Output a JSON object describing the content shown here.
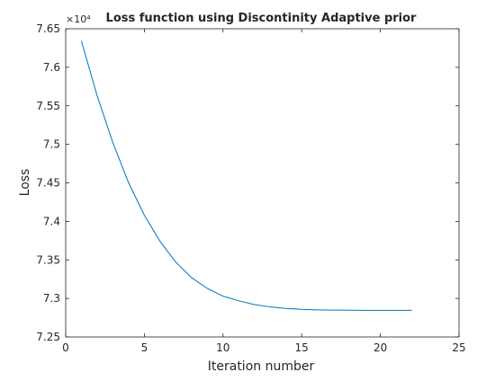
{
  "chart_data": {
    "type": "line",
    "title": "Loss function using Discontinity Adaptive prior",
    "xlabel": "Iteration number",
    "ylabel": "Loss",
    "y_exponent_label": "×10⁴",
    "xlim": [
      0,
      25
    ],
    "ylim": [
      7.25,
      7.65
    ],
    "x_ticks": [
      0,
      5,
      10,
      15,
      20,
      25
    ],
    "y_ticks": [
      7.25,
      7.3,
      7.35,
      7.4,
      7.45,
      7.5,
      7.55,
      7.6,
      7.65
    ],
    "x_tick_labels": [
      "0",
      "5",
      "10",
      "15",
      "20",
      "25"
    ],
    "y_tick_labels": [
      "7.25",
      "7.3",
      "7.35",
      "7.4",
      "7.45",
      "7.5",
      "7.55",
      "7.6",
      "7.65"
    ],
    "grid": false,
    "series": [
      {
        "color": "#0072bd",
        "x": [
          1,
          2,
          3,
          4,
          5,
          6,
          7,
          8,
          9,
          10,
          11,
          12,
          13,
          14,
          15,
          16,
          17,
          18,
          19,
          20,
          21,
          22
        ],
        "y": [
          7.634,
          7.563,
          7.502,
          7.45,
          7.408,
          7.374,
          7.347,
          7.327,
          7.313,
          7.303,
          7.297,
          7.292,
          7.289,
          7.287,
          7.2858,
          7.2852,
          7.2849,
          7.2847,
          7.2846,
          7.2846,
          7.2846,
          7.2846
        ]
      }
    ]
  }
}
